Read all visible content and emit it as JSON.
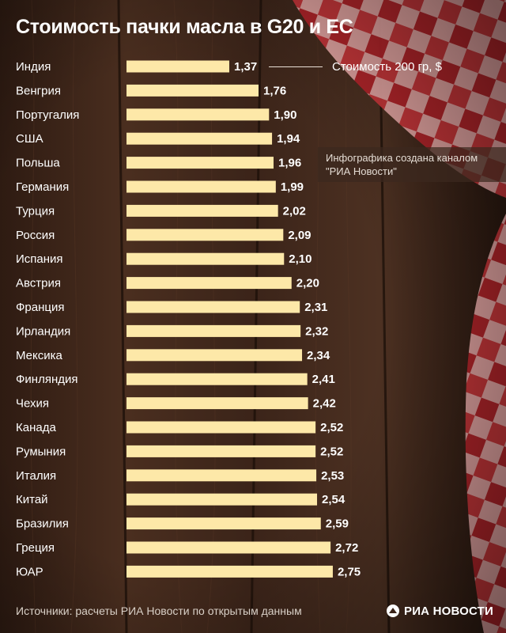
{
  "title": "Стоимость пачки масла в G20 и ЕС",
  "legend_label": "Стоимость 200 гр, $",
  "credit": {
    "line1": "Инфографика создана каналом",
    "line2": "\"РИА Новости\""
  },
  "source": "Источники: расчеты РИА Новости по открытым данным",
  "brand": "РИА НОВОСТИ",
  "colors": {
    "bar": "#fde8a8",
    "text": "#ffffff",
    "tablecloth_red": "#c42a2f"
  },
  "chart_data": {
    "type": "bar",
    "orientation": "horizontal",
    "title": "Стоимость пачки масла в G20 и ЕС",
    "xlim": [
      0,
      2.75
    ],
    "grid": false,
    "categories": [
      "Индия",
      "Венгрия",
      "Португалия",
      "США",
      "Польша",
      "Германия",
      "Турция",
      "Россия",
      "Испания",
      "Австрия",
      "Франция",
      "Ирландия",
      "Мексика",
      "Финляндия",
      "Чехия",
      "Канада",
      "Румыния",
      "Италия",
      "Китай",
      "Бразилия",
      "Греция",
      "ЮАР"
    ],
    "values": [
      1.37,
      1.76,
      1.9,
      1.94,
      1.96,
      1.99,
      2.02,
      2.09,
      2.1,
      2.2,
      2.31,
      2.32,
      2.34,
      2.41,
      2.42,
      2.52,
      2.52,
      2.53,
      2.54,
      2.59,
      2.72,
      2.75
    ],
    "value_labels": [
      "1,37",
      "1,76",
      "1,90",
      "1,94",
      "1,96",
      "1,99",
      "2,02",
      "2,09",
      "2,10",
      "2,20",
      "2,31",
      "2,32",
      "2,34",
      "2,41",
      "2,42",
      "2,52",
      "2,52",
      "2,53",
      "2,54",
      "2,59",
      "2,72",
      "2,75"
    ]
  }
}
